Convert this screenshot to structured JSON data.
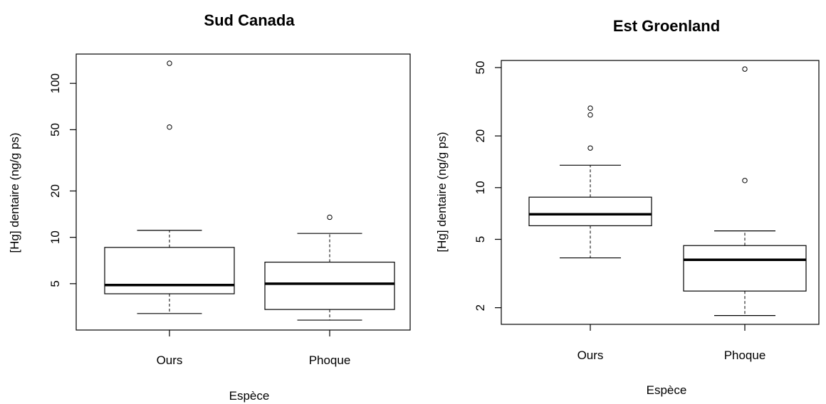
{
  "chart_data": [
    {
      "type": "box",
      "title": "Sud Canada",
      "xlabel": "Espèce",
      "ylabel": "[Hg] dentaire (ng/g ps)",
      "yscale": "log",
      "ylim": [
        2.5,
        155
      ],
      "yticks": [
        5,
        10,
        20,
        50,
        100
      ],
      "ytick_labels": [
        "5",
        "10",
        "20",
        "50",
        "100"
      ],
      "categories": [
        "Ours",
        "Phoque"
      ],
      "boxes": [
        {
          "name": "Ours",
          "whisker_low": 3.2,
          "q1": 4.3,
          "median": 4.9,
          "q3": 8.6,
          "whisker_high": 11.1,
          "outliers": [
            52,
            135
          ]
        },
        {
          "name": "Phoque",
          "whisker_low": 2.9,
          "q1": 3.4,
          "median": 5.0,
          "q3": 6.9,
          "whisker_high": 10.6,
          "outliers": [
            13.5
          ]
        }
      ]
    },
    {
      "type": "box",
      "title": "Est Groenland",
      "xlabel": "Espèce",
      "ylabel": "[Hg] dentaire (ng/g ps)",
      "yscale": "log",
      "ylim": [
        1.6,
        55
      ],
      "yticks": [
        2,
        5,
        10,
        20,
        50
      ],
      "ytick_labels": [
        "2",
        "5",
        "10",
        "20",
        "50"
      ],
      "categories": [
        "Ours",
        "Phoque"
      ],
      "boxes": [
        {
          "name": "Ours",
          "whisker_low": 3.9,
          "q1": 6.0,
          "median": 7.0,
          "q3": 8.8,
          "whisker_high": 13.5,
          "outliers": [
            17,
            26.5,
            29
          ]
        },
        {
          "name": "Phoque",
          "whisker_low": 1.8,
          "q1": 2.5,
          "median": 3.8,
          "q3": 4.6,
          "whisker_high": 5.6,
          "outliers": [
            11,
            49
          ]
        }
      ]
    }
  ]
}
